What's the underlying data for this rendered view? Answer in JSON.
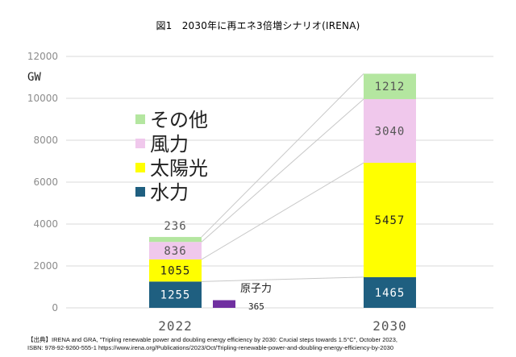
{
  "chart_data": {
    "type": "bar",
    "stacked": true,
    "title": "図1　2030年に再エネ3倍増シナリオ(IRENA)",
    "unit_label": "GW",
    "categories": [
      "2022",
      "2030"
    ],
    "ylim": [
      0,
      12000
    ],
    "yticks": [
      "0",
      "2000",
      "4000",
      "6000",
      "8000",
      "10000",
      "12000"
    ],
    "grid": true,
    "legend_position": "upper-left inside plot",
    "series": [
      {
        "name": "水力",
        "color": "#1f5f80",
        "text_color": "#ffffff",
        "values": [
          1255,
          1465
        ]
      },
      {
        "name": "太陽光",
        "color": "#ffff00",
        "text_color": "#222222",
        "values": [
          1055,
          5457
        ]
      },
      {
        "name": "風力",
        "color": "#f0c8ec",
        "text_color": "#555555",
        "values": [
          836,
          3040
        ]
      },
      {
        "name": "その他",
        "color": "#b4e6a0",
        "text_color": "#555555",
        "values": [
          236,
          1212
        ]
      }
    ],
    "value_labels": [
      [
        "1255",
        "1465"
      ],
      [
        "1055",
        "5457"
      ],
      [
        "836",
        "3040"
      ],
      [
        "236",
        "1212"
      ]
    ],
    "legend_order": [
      "その他",
      "風力",
      "太陽光",
      "水力"
    ],
    "extra_bar": {
      "name": "原子力",
      "category": "2022",
      "value": 365,
      "label": "365",
      "color": "#7030a0"
    }
  },
  "source": {
    "line1": "【出典】IRENA and GRA, \"Tripling renewable power and doubling energy efficiency by 2030: Crucial steps towards 1.5°C\", October 2023,",
    "line2": "ISBN: 978-92-9260-555-1 https://www.irena.org/Publications/2023/Oct/Tripling-renewable-power-and-doubling-energy-efficiency-by-2030"
  }
}
